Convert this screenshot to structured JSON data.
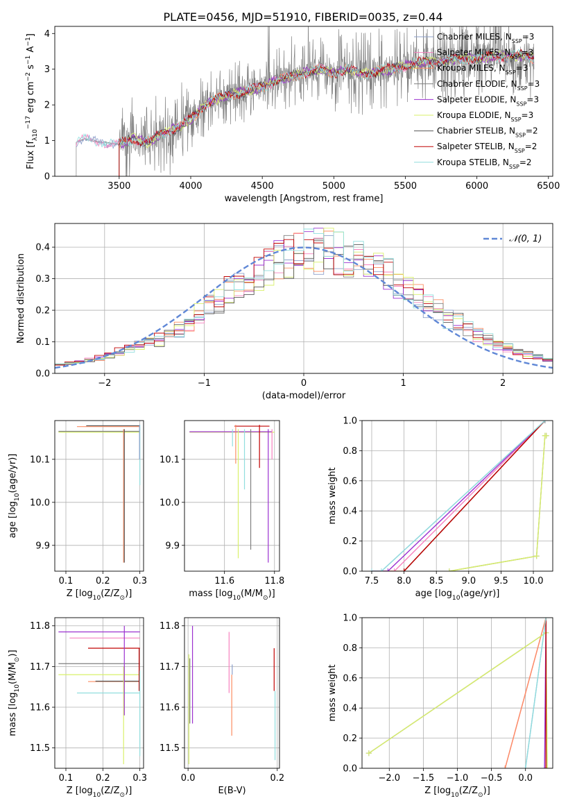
{
  "figure_title": "PLATE=0456, MJD=51910, FIBERID=0035, z=0.44",
  "colors": {
    "Chabrier MILES": "#8da0cb",
    "Salpeter MILES": "#f781bf",
    "Kroupa MILES": "#fc8d62",
    "Chabrier ELODIE": "#7f7f7f",
    "Salpeter ELODIE": "#9b30d0",
    "Kroupa ELODIE": "#d9f06a",
    "Chabrier STELIB": "#555555",
    "Salpeter STELIB": "#c00000",
    "Kroupa STELIB": "#90dede",
    "normal": "#5f87d6",
    "data": "#808080"
  },
  "chart_data": [
    {
      "id": "spectrum",
      "type": "line",
      "title": "PLATE=0456, MJD=51910, FIBERID=0035, z=0.44",
      "xlabel": "wavelength [Angstrom, rest frame]",
      "ylabel_parts": [
        "Flux [f",
        "λ",
        "10",
        "−17",
        " erg cm",
        "−2",
        " s",
        "−1",
        " A",
        "−1",
        "]"
      ],
      "xlim": [
        3050,
        6530
      ],
      "ylim": [
        0,
        4.2
      ],
      "xticks": [
        3500,
        4000,
        4500,
        5000,
        5500,
        6000,
        6500
      ],
      "yticks": [
        0,
        1,
        2,
        3,
        4
      ],
      "grid": false,
      "legend_position": "top-right",
      "legend": [
        {
          "label": "Chabrier MILES, N",
          "sub": "SSP",
          "suffix": "=3",
          "color": "#8da0cb"
        },
        {
          "label": "Salpeter MILES, N",
          "sub": "SSP",
          "suffix": "=3",
          "color": "#f781bf"
        },
        {
          "label": "Kroupa MILES, N",
          "sub": "SSP",
          "suffix": "=3",
          "color": "#fc8d62"
        },
        {
          "label": "Chabrier ELODIE, N",
          "sub": "SSP",
          "suffix": "=3",
          "color": "#7f7f7f"
        },
        {
          "label": "Salpeter ELODIE, N",
          "sub": "SSP",
          "suffix": "=3",
          "color": "#9b30d0"
        },
        {
          "label": "Kroupa ELODIE, N",
          "sub": "SSP",
          "suffix": "=3",
          "color": "#d9f06a"
        },
        {
          "label": "Chabrier STELIB, N",
          "sub": "SSP",
          "suffix": "=2",
          "color": "#555555"
        },
        {
          "label": "Salpeter STELIB, N",
          "sub": "SSP",
          "suffix": "=2",
          "color": "#c00000"
        },
        {
          "label": "Kroupa STELIB, N",
          "sub": "SSP",
          "suffix": "=2",
          "color": "#90dede"
        }
      ],
      "continuum": {
        "x": [
          3200,
          3250,
          3300,
          3400,
          3500,
          3600,
          3700,
          3800,
          3900,
          4000,
          4100,
          4200,
          4300,
          4400,
          4500,
          4600,
          4700,
          4800,
          4900,
          5000,
          5100,
          5200,
          5300,
          5400,
          5500,
          5600,
          5700,
          5800,
          5900,
          6000,
          6100,
          6200,
          6300,
          6400
        ],
        "y": [
          0.95,
          1.05,
          1.0,
          0.95,
          0.9,
          1.05,
          0.95,
          1.2,
          1.35,
          1.6,
          2.0,
          2.2,
          2.3,
          2.4,
          2.5,
          2.7,
          2.8,
          2.9,
          3.0,
          2.9,
          3.0,
          2.85,
          2.95,
          3.0,
          3.1,
          3.2,
          3.2,
          3.25,
          3.3,
          3.3,
          3.35,
          3.35,
          3.4,
          3.3
        ]
      },
      "data_start": 3200,
      "data_end": 6400,
      "model_start": 3500
    },
    {
      "id": "residuals",
      "type": "histogram",
      "xlabel": "(data-model)/error",
      "ylabel": "Normed distribution",
      "xlim": [
        -2.5,
        2.5
      ],
      "ylim": [
        0,
        0.475
      ],
      "xticks": [
        -2,
        -1,
        0,
        1,
        2
      ],
      "yticks": [
        0.0,
        0.1,
        0.2,
        0.3,
        0.4
      ],
      "grid": true,
      "legend_position": "top-right",
      "legend": [
        {
          "label": "𝒩(0, 1)",
          "color": "#5f87d6",
          "style": "dashed"
        }
      ],
      "bins": [
        -2.5,
        2.5,
        50
      ],
      "series_peak_offsets": [
        0.02,
        -0.01,
        0.03,
        0.0,
        -0.02,
        0.01,
        0.04,
        -0.03,
        0.02
      ]
    },
    {
      "id": "age_vs_Z",
      "type": "errorbar",
      "xlabel_parts": [
        "Z [log",
        "10",
        "(Z/Z",
        "⊙",
        ")]"
      ],
      "ylabel_parts": [
        "age  [log",
        "10",
        "(age/yr)]"
      ],
      "xlim": [
        0.07,
        0.31
      ],
      "ylim": [
        9.84,
        10.19
      ],
      "xticks": [
        0.1,
        0.2,
        0.3
      ],
      "yticks": [
        9.9,
        10.0,
        10.1
      ],
      "grid": true,
      "segments": [
        {
          "x": [
            0.08,
            0.3
          ],
          "y": [
            10.163,
            10.163
          ],
          "color": "#d9f06a"
        },
        {
          "x": [
            0.13,
            0.3
          ],
          "y": [
            10.176,
            10.176
          ],
          "color": "#fc8d62"
        },
        {
          "x": [
            0.155,
            0.3
          ],
          "y": [
            10.178,
            10.178
          ],
          "color": "#555555"
        },
        {
          "x": [
            0.08,
            0.3
          ],
          "y": [
            10.165,
            10.165
          ],
          "color": "#7f7f7f"
        },
        {
          "x": [
            0.256,
            0.256
          ],
          "y": [
            9.86,
            10.17
          ],
          "color": "#fc8d62"
        },
        {
          "x": [
            0.258,
            0.258
          ],
          "y": [
            9.86,
            10.17
          ],
          "color": "#555555"
        },
        {
          "x": [
            0.3,
            0.3
          ],
          "y": [
            10.04,
            10.18
          ],
          "color": "#90dede"
        },
        {
          "x": [
            0.299,
            0.299
          ],
          "y": [
            10.1,
            10.18
          ],
          "color": "#8da0cb"
        }
      ]
    },
    {
      "id": "age_vs_mass",
      "type": "errorbar",
      "xlabel_parts": [
        "mass [log",
        "10",
        "(M/M",
        "⊙",
        ")]"
      ],
      "ylabel": "",
      "xlim": [
        11.44,
        11.82
      ],
      "ylim": [
        9.84,
        10.19
      ],
      "xticks": [
        11.6,
        11.8
      ],
      "yticks": [
        9.9,
        10.0,
        10.1
      ],
      "grid": true,
      "segments": [
        {
          "x": [
            11.46,
            11.8
          ],
          "y": [
            10.163,
            10.163
          ],
          "color": "#d9f06a"
        },
        {
          "x": [
            11.64,
            11.78
          ],
          "y": [
            10.177,
            10.177
          ],
          "color": "#c00000"
        },
        {
          "x": [
            11.46,
            11.79
          ],
          "y": [
            10.164,
            10.164
          ],
          "color": "#9b30d0"
        },
        {
          "x": [
            11.645,
            11.645
          ],
          "y": [
            10.09,
            10.18
          ],
          "color": "#fc8d62"
        },
        {
          "x": [
            11.632,
            11.632
          ],
          "y": [
            10.13,
            10.17
          ],
          "color": "#90dede"
        },
        {
          "x": [
            11.655,
            11.655
          ],
          "y": [
            9.87,
            10.17
          ],
          "color": "#d9f06a"
        },
        {
          "x": [
            11.68,
            11.68
          ],
          "y": [
            10.03,
            10.17
          ],
          "color": "#90dede"
        },
        {
          "x": [
            11.705,
            11.705
          ],
          "y": [
            9.89,
            10.17
          ],
          "color": "#7f7f7f"
        },
        {
          "x": [
            11.74,
            11.74
          ],
          "y": [
            10.08,
            10.18
          ],
          "color": "#c00000"
        },
        {
          "x": [
            11.775,
            11.775
          ],
          "y": [
            9.86,
            10.17
          ],
          "color": "#9b30d0"
        },
        {
          "x": [
            11.79,
            11.79
          ],
          "y": [
            10.1,
            10.17
          ],
          "color": "#f781bf"
        }
      ]
    },
    {
      "id": "weight_vs_age",
      "type": "line",
      "xlabel_parts": [
        "age  [log",
        "10",
        "(age/yr)]"
      ],
      "ylabel": "mass weight",
      "xlim": [
        7.35,
        10.3
      ],
      "ylim": [
        0,
        1.0
      ],
      "xticks": [
        7.5,
        8.0,
        8.5,
        9.0,
        9.5,
        10.0
      ],
      "yticks": [
        0.0,
        0.2,
        0.4,
        0.6,
        0.8,
        1.0
      ],
      "grid": true,
      "series": [
        {
          "name": "Chabrier MILES",
          "color": "#8da0cb",
          "x": [
            7.5,
            7.65,
            10.18
          ],
          "y": [
            0,
            0,
            1.0
          ]
        },
        {
          "name": "Salpeter MILES",
          "color": "#f781bf",
          "x": [
            7.5,
            7.85,
            10.18
          ],
          "y": [
            0,
            0,
            1.0
          ]
        },
        {
          "name": "Kroupa MILES",
          "color": "#fc8d62",
          "x": [
            7.5,
            8.0,
            10.18
          ],
          "y": [
            0,
            0,
            1.0
          ]
        },
        {
          "name": "Chabrier ELODIE",
          "color": "#7f7f7f",
          "x": [
            8.7,
            10.05,
            10.18,
            10.2
          ],
          "y": [
            0,
            0.1,
            0.9,
            0.9
          ]
        },
        {
          "name": "Salpeter ELODIE",
          "color": "#9b30d0",
          "x": [
            7.5,
            7.75,
            10.18
          ],
          "y": [
            0,
            0,
            1.0
          ]
        },
        {
          "name": "Kroupa ELODIE",
          "color": "#d9f06a",
          "x": [
            8.7,
            10.05,
            10.18,
            10.2
          ],
          "y": [
            0,
            0.1,
            0.9,
            0.9
          ]
        },
        {
          "name": "Chabrier STELIB",
          "color": "#555555",
          "x": [
            8.0,
            10.18
          ],
          "y": [
            0,
            1.0
          ]
        },
        {
          "name": "Salpeter STELIB",
          "color": "#c00000",
          "x": [
            8.0,
            10.18
          ],
          "y": [
            0,
            1.0
          ]
        },
        {
          "name": "Kroupa STELIB",
          "color": "#90dede",
          "x": [
            7.5,
            7.65,
            10.18
          ],
          "y": [
            0,
            0,
            1.0
          ]
        }
      ]
    },
    {
      "id": "mass_vs_Z",
      "type": "errorbar",
      "xlabel_parts": [
        "Z [log",
        "10",
        "(Z/Z",
        "⊙",
        ")]"
      ],
      "ylabel_parts": [
        "mass [log",
        "10",
        "(M/M",
        "⊙",
        ")]"
      ],
      "xlim": [
        0.07,
        0.31
      ],
      "ylim": [
        11.45,
        11.82
      ],
      "xticks": [
        0.1,
        0.2,
        0.3
      ],
      "yticks": [
        11.5,
        11.6,
        11.7,
        11.8
      ],
      "grid": true,
      "segments": [
        {
          "x": [
            0.08,
            0.3
          ],
          "y": [
            11.785,
            11.785
          ],
          "color": "#9b30d0"
        },
        {
          "x": [
            0.11,
            0.3
          ],
          "y": [
            11.77,
            11.77
          ],
          "color": "#f781bf"
        },
        {
          "x": [
            0.16,
            0.3
          ],
          "y": [
            11.745,
            11.745
          ],
          "color": "#c00000"
        },
        {
          "x": [
            0.08,
            0.3
          ],
          "y": [
            11.707,
            11.707
          ],
          "color": "#7f7f7f"
        },
        {
          "x": [
            0.08,
            0.3
          ],
          "y": [
            11.68,
            11.68
          ],
          "color": "#d9f06a"
        },
        {
          "x": [
            0.16,
            0.3
          ],
          "y": [
            11.663,
            11.663
          ],
          "color": "#fc8d62"
        },
        {
          "x": [
            0.18,
            0.3
          ],
          "y": [
            11.664,
            11.664
          ],
          "color": "#555555"
        },
        {
          "x": [
            0.13,
            0.3
          ],
          "y": [
            11.635,
            11.635
          ],
          "color": "#90dede"
        },
        {
          "x": [
            0.256,
            0.256
          ],
          "y": [
            11.46,
            11.7
          ],
          "color": "#d9f06a"
        },
        {
          "x": [
            0.258,
            0.258
          ],
          "y": [
            11.58,
            11.8
          ],
          "color": "#9b30d0"
        },
        {
          "x": [
            0.298,
            0.298
          ],
          "y": [
            11.64,
            11.745
          ],
          "color": "#c00000"
        },
        {
          "x": [
            0.3,
            0.3
          ],
          "y": [
            11.48,
            11.69
          ],
          "color": "#90dede"
        }
      ]
    },
    {
      "id": "mass_vs_ebv",
      "type": "errorbar",
      "xlabel": "E(B-V)",
      "ylabel": "",
      "xlim": [
        -0.008,
        0.205
      ],
      "ylim": [
        11.45,
        11.82
      ],
      "xticks": [
        0.0,
        0.2
      ],
      "yticks": [
        11.5,
        11.6,
        11.7,
        11.8
      ],
      "grid": true,
      "segments": [
        {
          "x": [
            0.002,
            0.002
          ],
          "y": [
            11.46,
            11.73
          ],
          "color": "#d9f06a"
        },
        {
          "x": [
            0.004,
            0.004
          ],
          "y": [
            11.56,
            11.72
          ],
          "color": "#7f7f7f"
        },
        {
          "x": [
            0.01,
            0.01
          ],
          "y": [
            11.56,
            11.8
          ],
          "color": "#9b30d0"
        },
        {
          "x": [
            0.092,
            0.092
          ],
          "y": [
            11.635,
            11.785
          ],
          "color": "#f781bf"
        },
        {
          "x": [
            0.098,
            0.098
          ],
          "y": [
            11.53,
            11.68
          ],
          "color": "#fc8d62"
        },
        {
          "x": [
            0.099,
            0.099
          ],
          "y": [
            11.68,
            11.705
          ],
          "color": "#8da0cb"
        },
        {
          "x": [
            0.193,
            0.193
          ],
          "y": [
            11.64,
            11.745
          ],
          "color": "#c00000"
        },
        {
          "x": [
            0.195,
            0.195
          ],
          "y": [
            11.47,
            11.64
          ],
          "color": "#90dede"
        }
      ]
    },
    {
      "id": "weight_vs_Z",
      "type": "line",
      "xlabel_parts": [
        "Z [log",
        "10",
        "(Z/Z",
        "⊙",
        ")]"
      ],
      "ylabel": "mass weight",
      "xlim": [
        -2.4,
        0.4
      ],
      "ylim": [
        0,
        1.0
      ],
      "xticks": [
        -2.0,
        -1.5,
        -1.0,
        -0.5,
        0.0
      ],
      "yticks": [
        0.0,
        0.2,
        0.4,
        0.6,
        0.8,
        1.0
      ],
      "grid": true,
      "series": [
        {
          "name": "Chabrier MILES",
          "color": "#8da0cb",
          "x": [
            0.0,
            0.3
          ],
          "y": [
            0,
            1.0
          ]
        },
        {
          "name": "Salpeter MILES",
          "color": "#f781bf",
          "x": [
            -0.3,
            0.3
          ],
          "y": [
            0,
            1.0
          ]
        },
        {
          "name": "Kroupa MILES",
          "color": "#fc8d62",
          "x": [
            -0.3,
            0.3
          ],
          "y": [
            0,
            1.0
          ]
        },
        {
          "name": "Chabrier ELODIE",
          "color": "#7f7f7f",
          "x": [
            -2.3,
            0.3,
            0.32
          ],
          "y": [
            0.1,
            0.9,
            0.0
          ]
        },
        {
          "name": "Salpeter ELODIE",
          "color": "#9b30d0",
          "x": [
            0.28,
            0.3
          ],
          "y": [
            0,
            1.0
          ]
        },
        {
          "name": "Kroupa ELODIE",
          "color": "#d9f06a",
          "x": [
            -2.3,
            0.3,
            0.32
          ],
          "y": [
            0.1,
            0.9,
            0.0
          ]
        },
        {
          "name": "Chabrier STELIB",
          "color": "#555555",
          "x": [
            0.3,
            0.3
          ],
          "y": [
            0,
            1.0
          ]
        },
        {
          "name": "Salpeter STELIB",
          "color": "#c00000",
          "x": [
            0.3,
            0.3
          ],
          "y": [
            0,
            1.0
          ]
        },
        {
          "name": "Kroupa STELIB",
          "color": "#90dede",
          "x": [
            0.0,
            0.3
          ],
          "y": [
            0,
            1.0
          ]
        }
      ]
    }
  ]
}
